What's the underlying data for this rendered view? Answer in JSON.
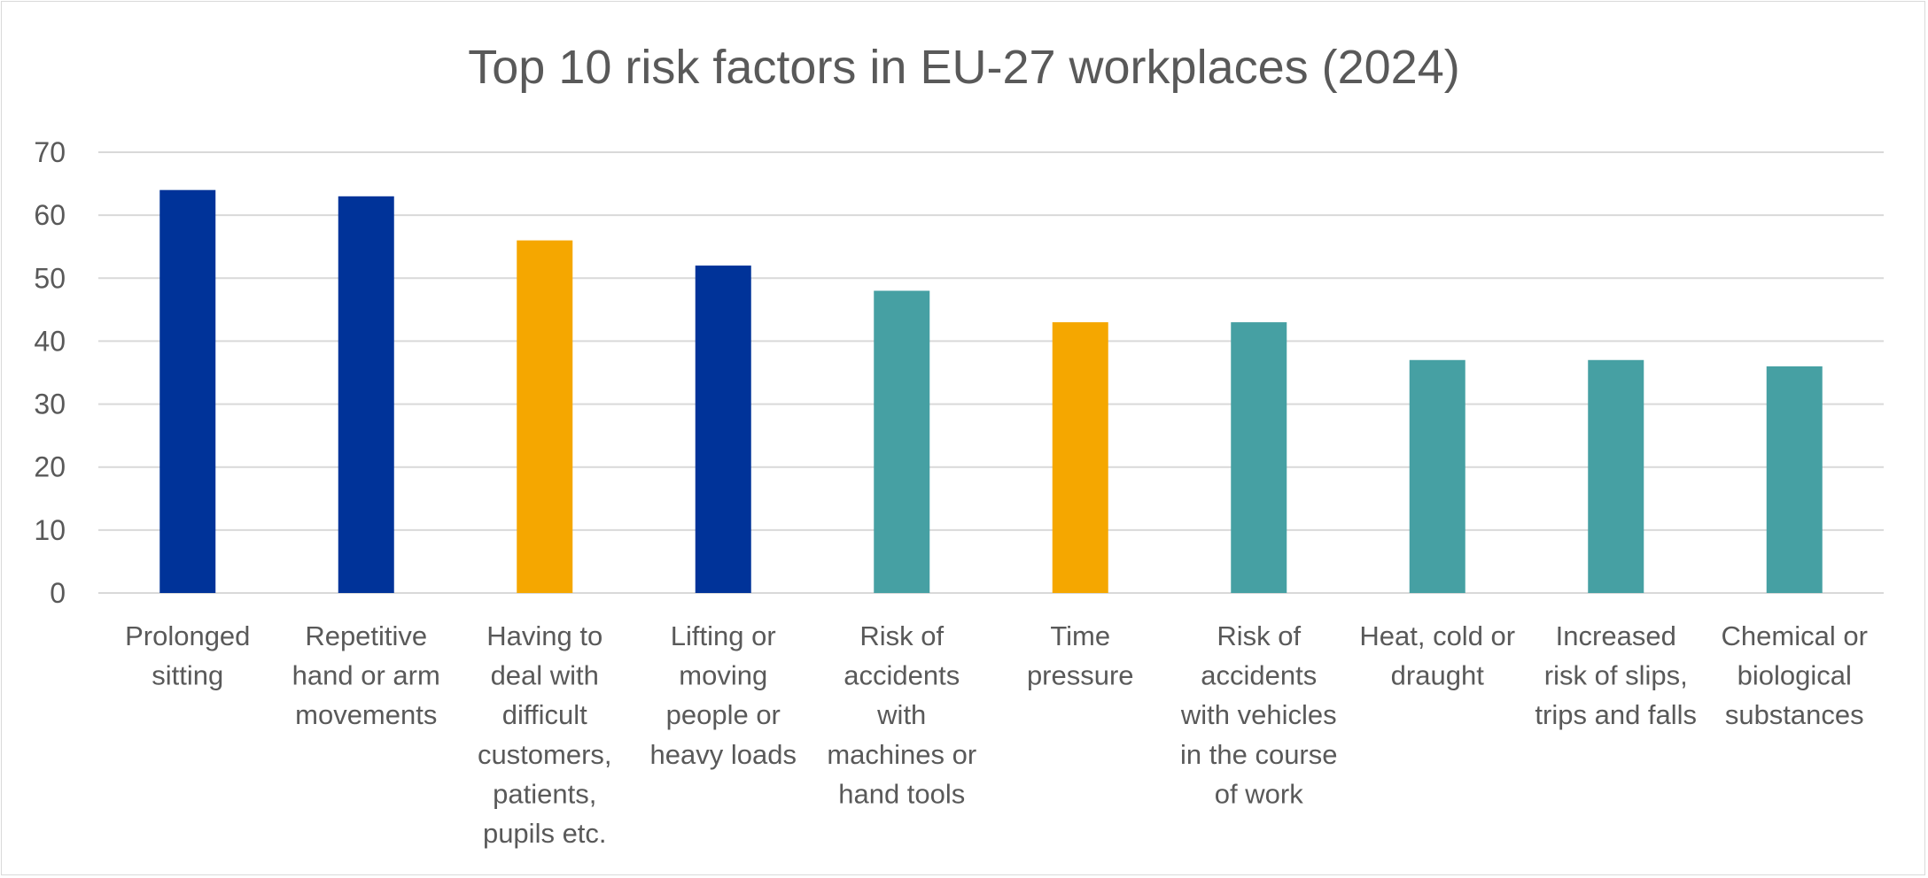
{
  "chart_data": {
    "type": "bar",
    "title": "Top 10 risk factors in EU-27 workplaces (2024)",
    "xlabel": "",
    "ylabel": "",
    "ylim": [
      0,
      70
    ],
    "yticks": [
      0,
      10,
      20,
      30,
      40,
      50,
      60,
      70
    ],
    "grid": true,
    "legend": "none",
    "categories": [
      "Prolonged sitting",
      "Repetitive hand or arm movements",
      "Having to deal with difficult customers, patients, pupils etc.",
      "Lifting or moving people or heavy loads",
      "Risk of accidents with machines or hand tools",
      "Time pressure",
      "Risk of accidents with vehicles in the course of work",
      "Heat, cold or draught",
      "Increased risk of slips, trips and falls",
      "Chemical or biological substances"
    ],
    "category_label_lines": [
      [
        "Prolonged",
        "sitting"
      ],
      [
        "Repetitive",
        "hand or arm",
        "movements"
      ],
      [
        "Having to",
        "deal with",
        "difficult",
        "customers,",
        "patients,",
        "pupils etc."
      ],
      [
        "Lifting or",
        "moving",
        "people or",
        "heavy loads"
      ],
      [
        "Risk of",
        "accidents",
        "with",
        "machines or",
        "hand tools"
      ],
      [
        "Time",
        "pressure"
      ],
      [
        "Risk of",
        "accidents",
        "with vehicles",
        "in the course",
        "of work"
      ],
      [
        "Heat, cold or",
        "draught"
      ],
      [
        "Increased",
        "risk of slips,",
        "trips and falls"
      ],
      [
        "Chemical or",
        "biological",
        "substances"
      ]
    ],
    "values": [
      64,
      63,
      56,
      52,
      48,
      43,
      43,
      37,
      37,
      36
    ],
    "bar_colors": [
      "#003399",
      "#003399",
      "#F5A700",
      "#003399",
      "#46A0A3",
      "#F5A700",
      "#46A0A3",
      "#46A0A3",
      "#46A0A3",
      "#46A0A3"
    ]
  }
}
